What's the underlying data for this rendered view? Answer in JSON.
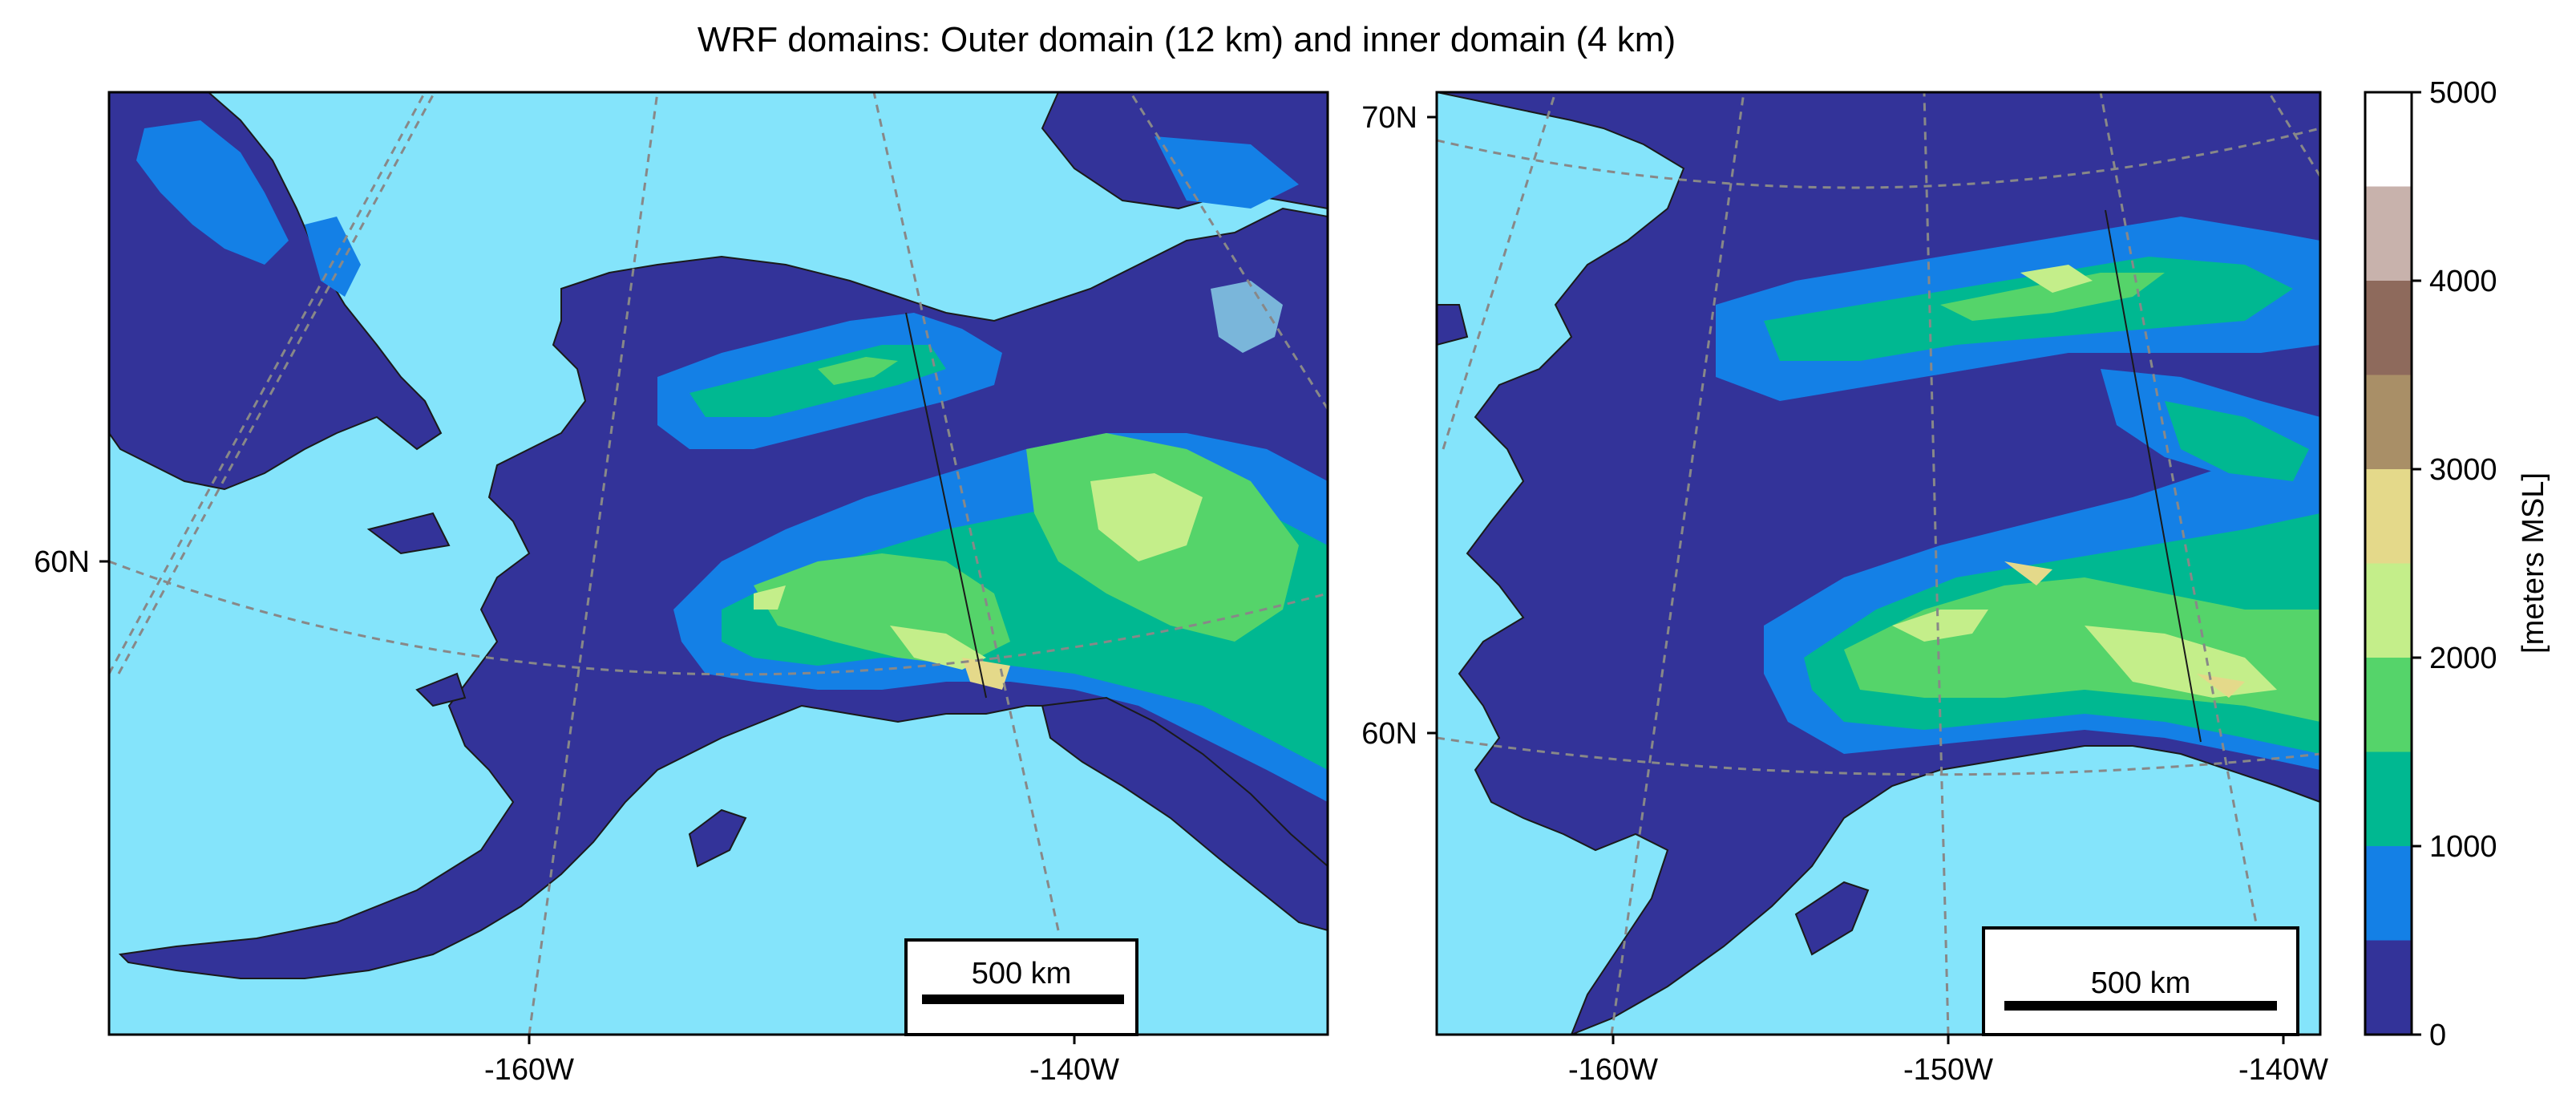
{
  "title": "WRF domains: Outer domain (12 km) and inner domain (4 km)",
  "panels": [
    {
      "id": "outer",
      "lat_labels": [
        "60N"
      ],
      "lon_labels": [
        "-160W",
        "-140W"
      ],
      "scalebar_label": "500 km"
    },
    {
      "id": "inner",
      "lat_labels": [
        "70N",
        "60N"
      ],
      "lon_labels": [
        "-160W",
        "-150W",
        "-140W"
      ],
      "scalebar_label": "500 km"
    }
  ],
  "colorbar": {
    "label": "[meters MSL]",
    "tick_labels": [
      "0",
      "1000",
      "2000",
      "3000",
      "4000",
      "5000"
    ],
    "levels": [
      0,
      500,
      1000,
      1500,
      2000,
      2500,
      3000,
      3500,
      4000,
      4500,
      5000
    ],
    "colors": [
      "#333399",
      "#1480e6",
      "#00b891",
      "#55d46a",
      "#c4ee8a",
      "#e4d98a",
      "#a98f67",
      "#8e6a5c",
      "#c8b2ac",
      "#ffffff"
    ]
  },
  "colors": {
    "ocean": "#84e4fb",
    "lowland": "#333399",
    "graticule": "#888888",
    "coastline": "#1a1a1a"
  }
}
